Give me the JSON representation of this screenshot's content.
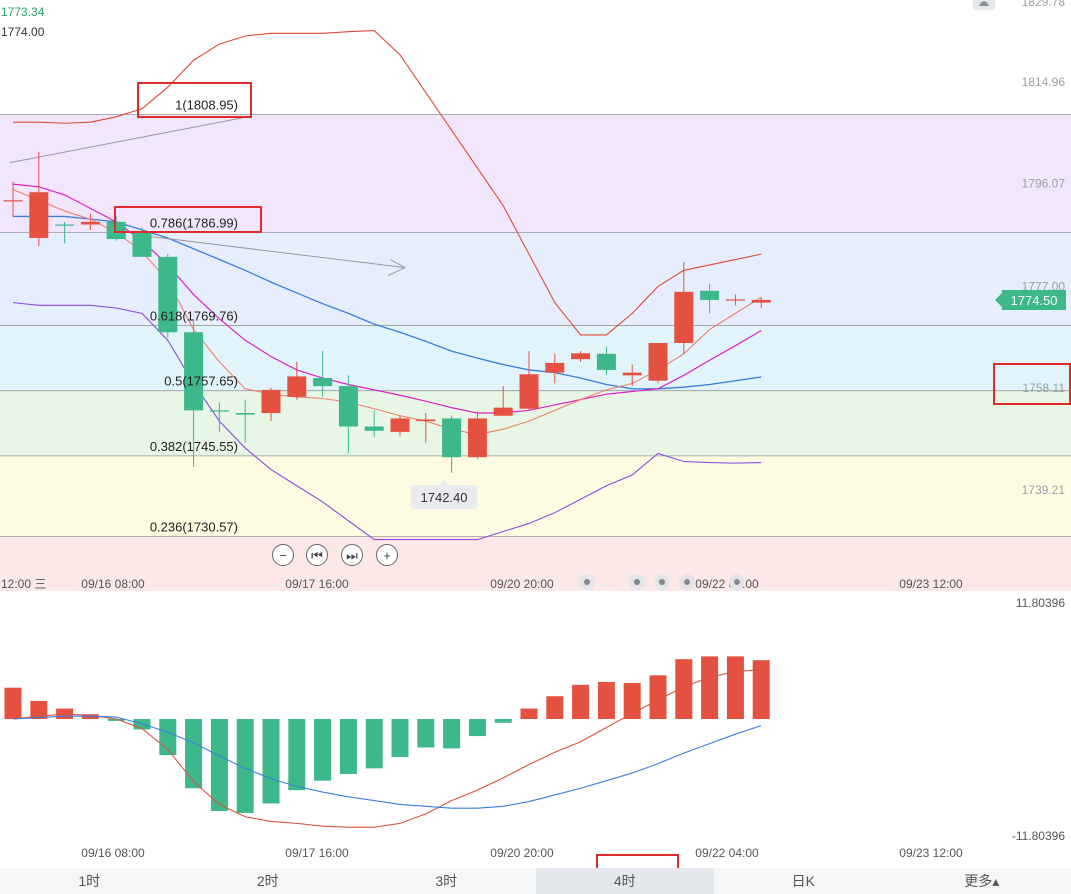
{
  "chart_data": {
    "type": "candlestick",
    "price_axis": {
      "labels": [
        "1829.78",
        "1814.96",
        "1796.07",
        "1777.00",
        "1758.11",
        "1739.21"
      ],
      "ylim": [
        1724,
        1833
      ]
    },
    "top_left_labels": {
      "high": "1773.34",
      "current": "1774.00"
    },
    "last_price": "1774.50",
    "x_labels": [
      "12:00 三",
      "09/16 08:00",
      "09/17 16:00",
      "09/20 20:00",
      "09/22 04:00",
      "09/23 12:00"
    ],
    "fibonacci": [
      {
        "ratio": "1",
        "label": "1(1808.95)",
        "price": 1808.95
      },
      {
        "ratio": "0.786",
        "label": "0.786(1786.99)",
        "price": 1786.99
      },
      {
        "ratio": "0.618",
        "label": "0.618(1769.76)",
        "price": 1769.76
      },
      {
        "ratio": "0.5",
        "label": "0.5(1757.65)",
        "price": 1757.65
      },
      {
        "ratio": "0.382",
        "label": "0.382(1745.55)",
        "price": 1745.55
      },
      {
        "ratio": "0.236",
        "label": "0.236(1730.57)",
        "price": 1730.57
      }
    ],
    "low_marker": "1742.40",
    "candles": [
      {
        "o": 1793.0,
        "h": 1796.5,
        "l": 1790.0,
        "c": 1793.0
      },
      {
        "o": 1786.0,
        "h": 1802.0,
        "l": 1784.5,
        "c": 1794.5
      },
      {
        "o": 1788.5,
        "h": 1789.0,
        "l": 1785.0,
        "c": 1788.3
      },
      {
        "o": 1788.5,
        "h": 1790.5,
        "l": 1787.5,
        "c": 1789.0
      },
      {
        "o": 1789.0,
        "h": 1790.0,
        "l": 1785.5,
        "c": 1785.8
      },
      {
        "o": 1787.0,
        "h": 1788.0,
        "l": 1782.5,
        "c": 1782.5
      },
      {
        "o": 1782.5,
        "h": 1783.0,
        "l": 1767.5,
        "c": 1768.5
      },
      {
        "o": 1768.5,
        "h": 1771.0,
        "l": 1743.5,
        "c": 1754.0
      },
      {
        "o": 1754.0,
        "h": 1755.5,
        "l": 1750.0,
        "c": 1753.8
      },
      {
        "o": 1753.5,
        "h": 1756.0,
        "l": 1748.0,
        "c": 1753.2
      },
      {
        "o": 1753.5,
        "h": 1758.2,
        "l": 1752.0,
        "c": 1757.8
      },
      {
        "o": 1756.5,
        "h": 1763.0,
        "l": 1756.0,
        "c": 1760.3
      },
      {
        "o": 1760.0,
        "h": 1765.0,
        "l": 1756.5,
        "c": 1758.5
      },
      {
        "o": 1758.5,
        "h": 1760.5,
        "l": 1746.0,
        "c": 1751.0
      },
      {
        "o": 1751.0,
        "h": 1754.0,
        "l": 1749.0,
        "c": 1750.2
      },
      {
        "o": 1750.0,
        "h": 1753.0,
        "l": 1749.3,
        "c": 1752.5
      },
      {
        "o": 1752.0,
        "h": 1753.5,
        "l": 1748.0,
        "c": 1752.3
      },
      {
        "o": 1752.5,
        "h": 1753.0,
        "l": 1742.4,
        "c": 1745.3
      },
      {
        "o": 1745.3,
        "h": 1753.8,
        "l": 1745.0,
        "c": 1752.5
      },
      {
        "o": 1753.0,
        "h": 1758.5,
        "l": 1753.0,
        "c": 1754.5
      },
      {
        "o": 1754.3,
        "h": 1765.0,
        "l": 1754.0,
        "c": 1760.7
      },
      {
        "o": 1761.0,
        "h": 1764.5,
        "l": 1759.0,
        "c": 1762.8
      },
      {
        "o": 1763.5,
        "h": 1765.0,
        "l": 1763.0,
        "c": 1764.6
      },
      {
        "o": 1764.5,
        "h": 1765.8,
        "l": 1760.5,
        "c": 1761.5
      },
      {
        "o": 1760.5,
        "h": 1762.5,
        "l": 1758.5,
        "c": 1761.0
      },
      {
        "o": 1759.5,
        "h": 1766.5,
        "l": 1759.0,
        "c": 1766.5
      },
      {
        "o": 1766.5,
        "h": 1781.5,
        "l": 1764.5,
        "c": 1776.0
      },
      {
        "o": 1776.2,
        "h": 1777.5,
        "l": 1772.0,
        "c": 1774.5
      },
      {
        "o": 1774.5,
        "h": 1775.5,
        "l": 1773.5,
        "c": 1774.6
      },
      {
        "o": 1774.0,
        "h": 1775.0,
        "l": 1773.0,
        "c": 1774.5
      }
    ],
    "bollinger": {
      "upper": [
        1807.5,
        1807.5,
        1807.3,
        1807.5,
        1808.5,
        1810.0,
        1814.0,
        1819.0,
        1822.0,
        1823.5,
        1824.0,
        1824.0,
        1824.0,
        1824.3,
        1824.5,
        1820.0,
        1813.0,
        1806.0,
        1799.0,
        1792.0,
        1783.0,
        1774.0,
        1768.0,
        1768.0,
        1772.0,
        1777.0,
        1780.0,
        1781.0,
        1782.0,
        1783.0
      ],
      "middle": [
        1790.0,
        1790.0,
        1790.0,
        1789.5,
        1789.0,
        1787.5,
        1786.0,
        1784.0,
        1782.0,
        1780.0,
        1777.8,
        1775.8,
        1773.8,
        1772.0,
        1770.0,
        1768.5,
        1766.8,
        1765.0,
        1763.7,
        1762.5,
        1761.5,
        1761.0,
        1760.0,
        1758.8,
        1758.0,
        1758.0,
        1758.3,
        1758.8,
        1759.5,
        1760.2
      ],
      "lower": [
        1774.0,
        1773.5,
        1773.5,
        1773.5,
        1773.0,
        1772.0,
        1767.0,
        1759.0,
        1752.0,
        1747.0,
        1743.0,
        1740.0,
        1737.0,
        1733.5,
        1730.0,
        1730.0,
        1730.0,
        1730.0,
        1730.0,
        1731.5,
        1733.0,
        1735.0,
        1737.5,
        1740.0,
        1742.0,
        1746.0,
        1744.5,
        1744.3,
        1744.2,
        1744.3
      ]
    },
    "ma_pink": [
      1796,
      1795.5,
      1794,
      1791.5,
      1789,
      1785.5,
      1781,
      1775.5,
      1771,
      1767,
      1764,
      1761.5,
      1760,
      1758.8,
      1757.8,
      1756.8,
      1755.7,
      1754.5,
      1753.5,
      1753.5,
      1754,
      1755,
      1756,
      1757,
      1757.5,
      1758,
      1760.5,
      1763.3,
      1766,
      1768.8
    ],
    "ma_salmon": [
      1795,
      1793,
      1791,
      1789.5,
      1787,
      1783.5,
      1778,
      1769,
      1763,
      1758,
      1757,
      1756.5,
      1756.2,
      1755.5,
      1754.3,
      1753,
      1752,
      1750.5,
      1749.5,
      1750.5,
      1752,
      1754,
      1756,
      1757.8,
      1759,
      1761.5,
      1764.5,
      1769,
      1772,
      1775
    ],
    "arrow_line": {
      "from_price": 1800.0,
      "to_price": 1808.5,
      "label": ""
    },
    "arrow_line2": {
      "from_price": 1786.5,
      "to_price": 1780.5
    },
    "macd_axis": {
      "top": "11.80396",
      "bottom": "-11.80396"
    },
    "macd_hist": [
      3.3,
      1.9,
      1.1,
      0.5,
      -0.2,
      -1.1,
      -3.8,
      -7.3,
      -9.7,
      -9.9,
      -8.9,
      -7.5,
      -6.5,
      -5.8,
      -5.2,
      -4.0,
      -3.0,
      -3.1,
      -1.8,
      -0.4,
      1.1,
      2.4,
      3.6,
      3.9,
      3.8,
      4.6,
      6.3,
      6.6,
      6.6,
      6.2
    ],
    "macd_dif": [
      0.0,
      0.3,
      0.5,
      0.4,
      0.0,
      -1.0,
      -3.2,
      -6.6,
      -9.0,
      -10.3,
      -10.8,
      -11.0,
      -11.3,
      -11.4,
      -11.4,
      -11.0,
      -10.0,
      -8.6,
      -7.5,
      -6.2,
      -4.8,
      -3.5,
      -2.4,
      -0.9,
      0.6,
      2.0,
      3.4,
      4.4,
      5.0,
      5.2
    ],
    "macd_dea": [
      0.0,
      0.15,
      0.3,
      0.3,
      0.2,
      -0.5,
      -1.4,
      -2.5,
      -3.9,
      -5.2,
      -6.3,
      -7.1,
      -7.7,
      -8.2,
      -8.6,
      -9.0,
      -9.2,
      -9.4,
      -9.4,
      -9.2,
      -8.7,
      -8.0,
      -7.3,
      -6.5,
      -5.7,
      -4.7,
      -3.6,
      -2.6,
      -1.6,
      -0.7
    ]
  },
  "period_tabs": [
    "1时",
    "2时",
    "3时",
    "4时",
    "日K",
    "更多▴"
  ],
  "active_tab": "4时",
  "colors": {
    "up": "#e45141",
    "down": "#3cb88a",
    "accent_box": "#e02b2b"
  }
}
